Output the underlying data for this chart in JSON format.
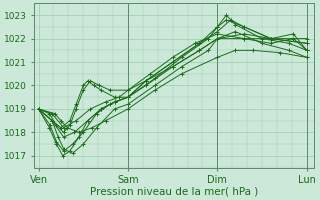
{
  "xlabel": "Pression niveau de la mer( hPa )",
  "bg_color": "#cce8d8",
  "grid_color": "#99ccaa",
  "line_color": "#1a6b1a",
  "ylim": [
    1016.5,
    1023.5
  ],
  "yticks": [
    1017,
    1018,
    1019,
    1020,
    1021,
    1022,
    1023
  ],
  "xtick_labels": [
    "Ven",
    "Sam",
    "Dim",
    "Lun"
  ],
  "xtick_positions": [
    0,
    1,
    2,
    3
  ],
  "marker": "+",
  "markersize": 3,
  "linewidth": 0.7,
  "series_xy": [
    {
      "x": [
        0.0,
        0.18,
        0.25,
        0.32,
        0.45,
        0.6,
        0.75,
        1.0,
        1.3,
        1.6,
        2.0,
        2.2,
        2.4,
        2.7,
        3.0
      ],
      "y": [
        1019.0,
        1018.8,
        1018.5,
        1018.2,
        1018.0,
        1018.2,
        1018.5,
        1019.0,
        1019.8,
        1020.5,
        1021.2,
        1021.5,
        1021.5,
        1021.4,
        1021.2
      ]
    },
    {
      "x": [
        0.0,
        0.15,
        0.22,
        0.28,
        0.38,
        0.5,
        0.65,
        0.85,
        1.0,
        1.3,
        1.6,
        1.9,
        2.0,
        2.2,
        2.5,
        2.8,
        3.0
      ],
      "y": [
        1019.0,
        1018.5,
        1017.8,
        1017.3,
        1017.1,
        1017.5,
        1018.2,
        1019.0,
        1019.2,
        1020.0,
        1020.8,
        1021.5,
        1022.0,
        1022.3,
        1021.8,
        1021.5,
        1021.2
      ]
    },
    {
      "x": [
        0.0,
        0.12,
        0.2,
        0.27,
        0.35,
        0.45,
        0.55,
        0.7,
        0.85,
        1.0,
        1.2,
        1.5,
        1.8,
        2.0,
        2.1,
        2.2,
        2.5,
        2.8,
        3.0
      ],
      "y": [
        1019.0,
        1018.2,
        1017.5,
        1017.0,
        1017.2,
        1017.8,
        1018.5,
        1019.0,
        1019.3,
        1019.5,
        1020.2,
        1021.0,
        1021.8,
        1022.5,
        1023.0,
        1022.6,
        1022.0,
        1021.8,
        1021.5
      ]
    },
    {
      "x": [
        0.0,
        0.13,
        0.2,
        0.28,
        0.38,
        0.5,
        0.65,
        0.8,
        1.0,
        1.2,
        1.5,
        1.8,
        2.0,
        2.15,
        2.3,
        2.6,
        3.0
      ],
      "y": [
        1019.0,
        1018.3,
        1017.6,
        1017.2,
        1017.5,
        1018.0,
        1018.8,
        1019.2,
        1019.5,
        1020.2,
        1021.0,
        1021.8,
        1022.3,
        1022.8,
        1022.5,
        1022.0,
        1021.8
      ]
    },
    {
      "x": [
        0.0,
        0.15,
        0.25,
        0.35,
        0.42,
        0.5,
        0.55,
        0.62,
        0.7,
        0.85,
        1.0,
        1.2,
        1.5,
        1.8,
        2.0,
        2.3,
        2.6,
        3.0
      ],
      "y": [
        1019.0,
        1018.5,
        1018.2,
        1018.5,
        1019.2,
        1020.0,
        1020.2,
        1020.0,
        1019.8,
        1019.5,
        1019.5,
        1020.0,
        1020.8,
        1021.5,
        1022.0,
        1022.2,
        1022.0,
        1022.0
      ]
    },
    {
      "x": [
        0.0,
        0.12,
        0.2,
        0.28,
        0.35,
        0.42,
        0.5,
        0.58,
        0.68,
        0.8,
        1.0,
        1.2,
        1.5,
        1.8,
        2.0,
        2.3,
        2.6,
        3.0
      ],
      "y": [
        1019.0,
        1018.8,
        1018.3,
        1018.0,
        1018.3,
        1019.0,
        1019.8,
        1020.2,
        1020.0,
        1019.8,
        1019.8,
        1020.2,
        1020.8,
        1021.5,
        1022.0,
        1022.0,
        1022.0,
        1021.8
      ]
    },
    {
      "x": [
        0.0,
        0.15,
        0.28,
        0.4,
        0.55,
        0.7,
        0.85,
        1.0,
        1.3,
        1.6,
        1.9,
        2.0,
        2.1,
        2.3,
        2.6,
        2.85,
        3.0
      ],
      "y": [
        1019.0,
        1018.5,
        1017.8,
        1018.0,
        1018.5,
        1019.0,
        1019.3,
        1019.5,
        1020.3,
        1021.2,
        1022.0,
        1022.5,
        1022.8,
        1022.5,
        1022.0,
        1022.2,
        1021.5
      ]
    },
    {
      "x": [
        0.0,
        0.15,
        0.28,
        0.42,
        0.58,
        0.75,
        0.9,
        1.0,
        1.25,
        1.5,
        1.75,
        2.0,
        2.3,
        2.6,
        2.85,
        3.0
      ],
      "y": [
        1019.0,
        1018.8,
        1018.2,
        1018.5,
        1019.0,
        1019.3,
        1019.5,
        1019.8,
        1020.5,
        1021.2,
        1021.8,
        1022.2,
        1022.0,
        1021.8,
        1022.0,
        1021.5
      ]
    }
  ]
}
